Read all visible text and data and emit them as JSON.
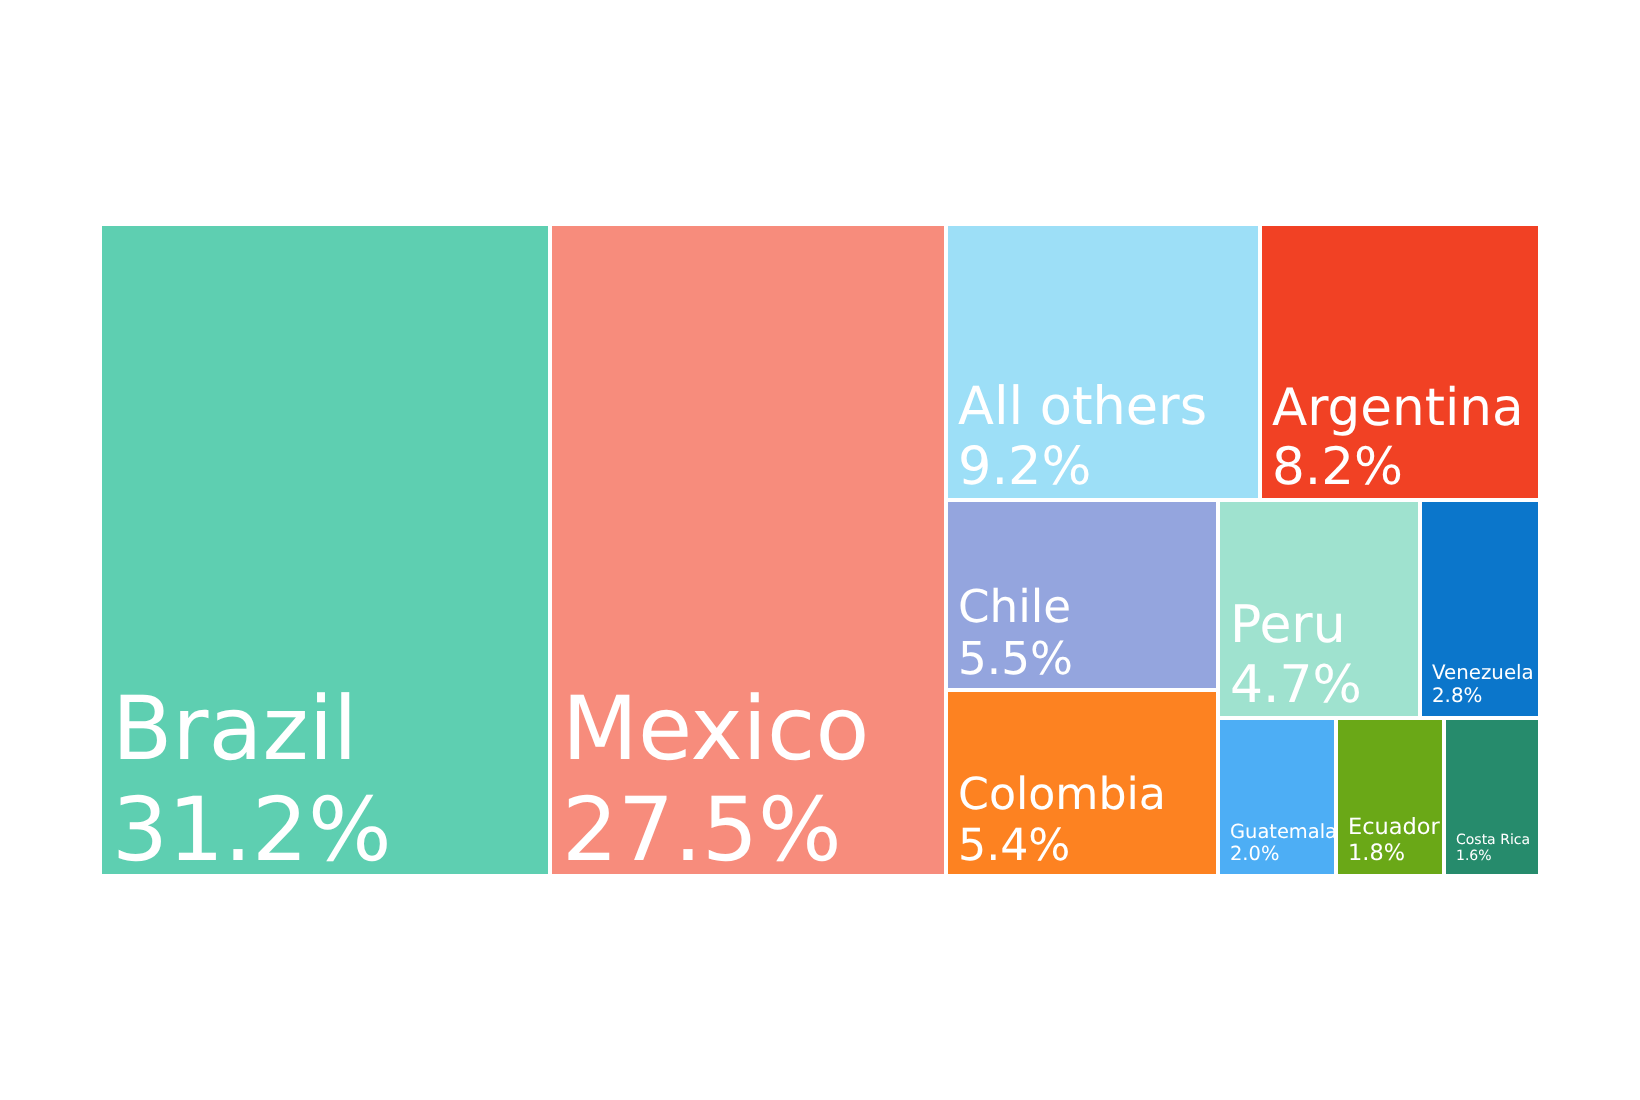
{
  "chart_data": {
    "type": "other",
    "categories": [
      "Brazil",
      "Mexico",
      "All others",
      "Argentina",
      "Chile",
      "Colombia",
      "Peru",
      "Venezuela",
      "Guatemala",
      "Ecuador",
      "Costa Rica"
    ],
    "values": [
      31.2,
      27.5,
      9.2,
      8.2,
      5.5,
      5.4,
      4.7,
      2.8,
      2.0,
      1.8,
      1.6
    ],
    "value_labels": [
      "31.2%",
      "27.5%",
      "9.2%",
      "8.2%",
      "5.5%",
      "5.4%",
      "4.7%",
      "2.8%",
      "2.0%",
      "1.8%",
      "1.6%"
    ],
    "colors": [
      "#5ecfb1",
      "#f78c7c",
      "#9ddff7",
      "#f14124",
      "#94a5de",
      "#fd8221",
      "#9fe2cf",
      "#0b76cb",
      "#4daef5",
      "#6aa817",
      "#268b6c"
    ]
  }
}
